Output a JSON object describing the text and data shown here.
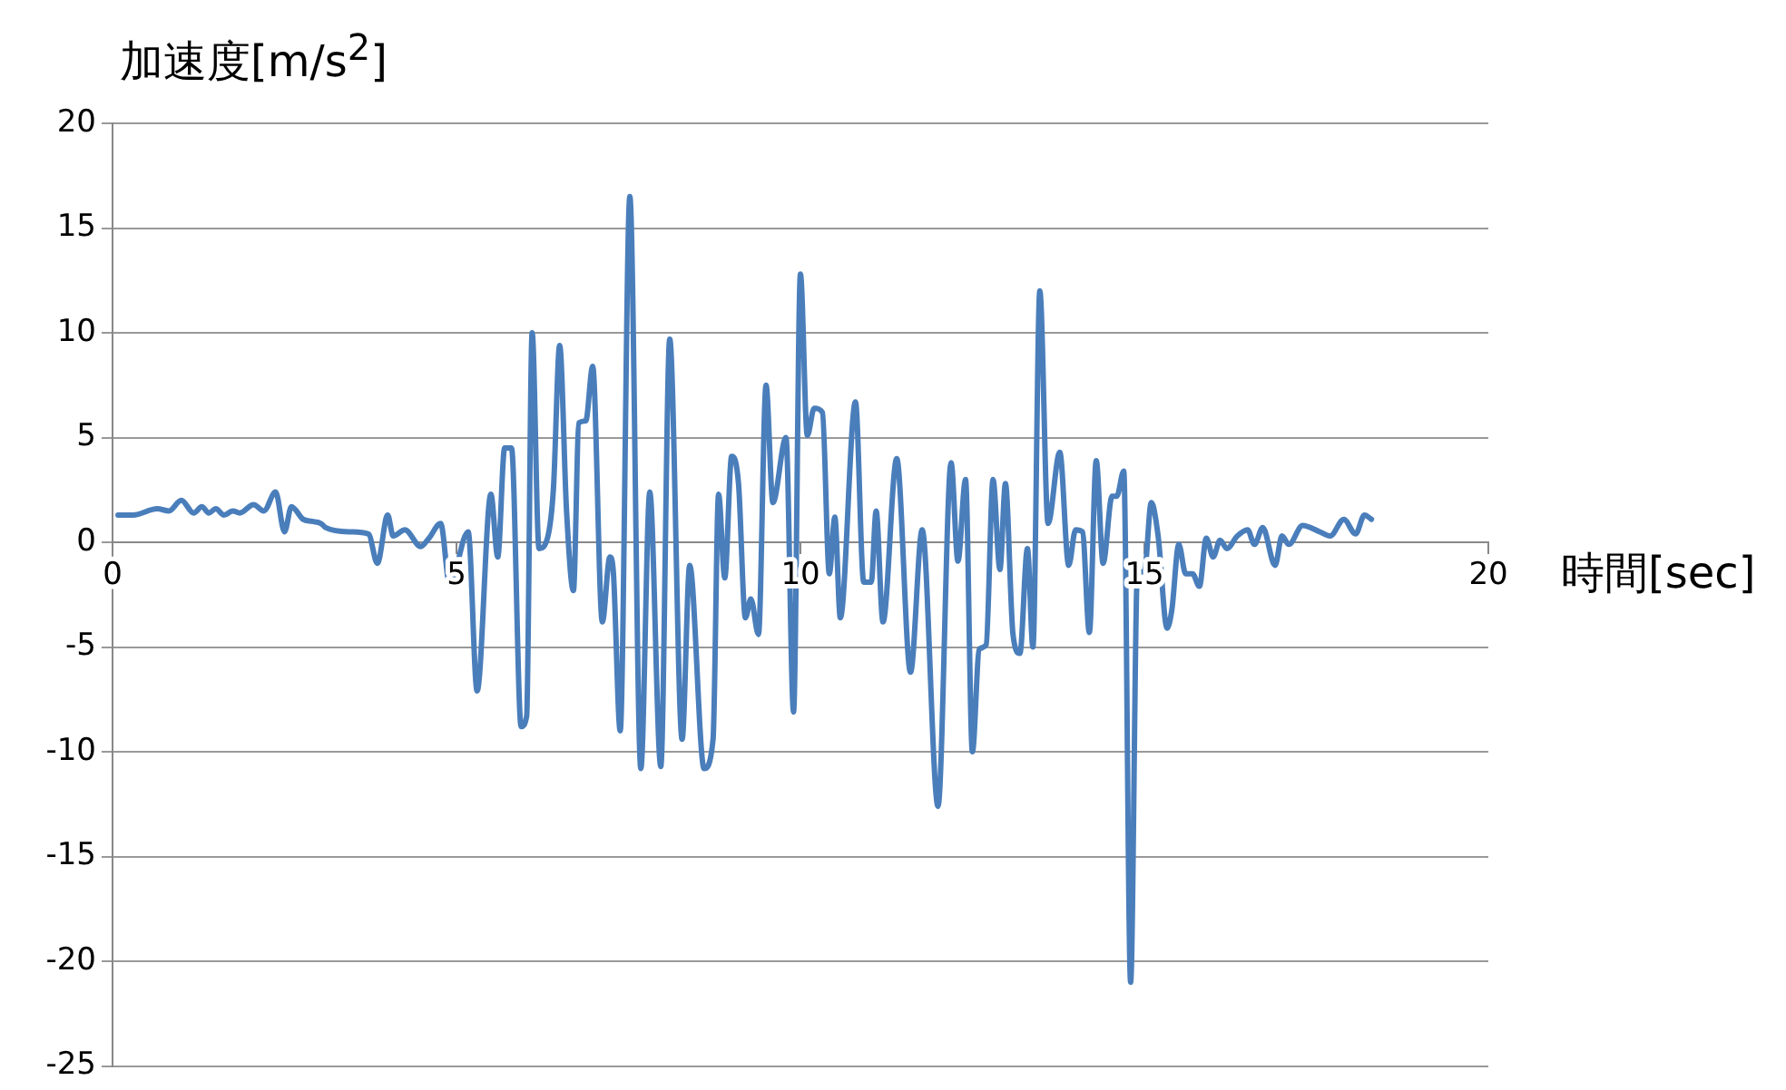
{
  "chart_data": {
    "type": "line",
    "xlabel": "時間[sec]",
    "ylabel": "加速度[m/s$^{2}$]",
    "xlim": [
      0,
      20
    ],
    "xticks": [
      0,
      5,
      10,
      15,
      20
    ],
    "ylim": [
      -25,
      20
    ],
    "yticks": [
      -25,
      -20,
      -15,
      -10,
      -5,
      0,
      5,
      10,
      15,
      20
    ],
    "grid": "y",
    "legend": false,
    "marker": "none",
    "line_style": "solid",
    "series": [
      {
        "color": "#4a7ebb",
        "x": [
          0.08,
          0.3,
          0.65,
          0.82,
          1.0,
          1.18,
          1.3,
          1.4,
          1.5,
          1.62,
          1.75,
          1.85,
          2.05,
          2.2,
          2.37,
          2.5,
          2.6,
          2.77,
          2.9,
          3.03,
          3.1,
          3.46,
          3.72,
          3.85,
          4.0,
          4.08,
          4.25,
          4.48,
          4.6,
          4.77,
          4.9,
          5.17,
          5.3,
          5.5,
          5.6,
          5.7,
          5.8,
          5.94,
          6.02,
          6.1,
          6.2,
          6.33,
          6.41,
          6.5,
          6.6,
          6.7,
          6.78,
          6.88,
          6.98,
          7.12,
          7.23,
          7.28,
          7.38,
          7.52,
          7.68,
          7.81,
          7.97,
          8.1,
          8.28,
          8.39,
          8.6,
          8.73,
          8.81,
          8.9,
          9.0,
          9.1,
          9.2,
          9.28,
          9.39,
          9.5,
          9.6,
          9.79,
          9.9,
          10.0,
          10.1,
          10.2,
          10.32,
          10.42,
          10.5,
          10.58,
          10.8,
          10.92,
          11.03,
          11.1,
          11.2,
          11.4,
          11.6,
          11.77,
          12.0,
          12.19,
          12.29,
          12.4,
          12.5,
          12.6,
          12.7,
          12.8,
          12.9,
          12.98,
          13.09,
          13.19,
          13.3,
          13.38,
          13.48,
          13.6,
          13.77,
          13.9,
          14.0,
          14.1,
          14.2,
          14.3,
          14.4,
          14.53,
          14.6,
          14.7,
          14.8,
          14.9,
          15.0,
          15.1,
          15.2,
          15.33,
          15.4,
          15.5,
          15.6,
          15.7,
          15.8,
          15.9,
          16.0,
          16.1,
          16.2,
          16.35,
          16.5,
          16.6,
          16.72,
          16.9,
          17.0,
          17.1,
          17.3,
          17.55,
          17.7,
          17.9,
          18.07,
          18.2,
          18.3
        ],
        "values": [
          1.3,
          1.3,
          1.6,
          1.5,
          2.0,
          1.4,
          1.7,
          1.4,
          1.6,
          1.3,
          1.5,
          1.4,
          1.8,
          1.5,
          2.4,
          0.5,
          1.7,
          1.1,
          1.0,
          0.9,
          0.7,
          0.5,
          0.4,
          -1.0,
          1.3,
          0.3,
          0.6,
          -0.2,
          0.2,
          0.9,
          -2.0,
          0.5,
          -7.1,
          2.3,
          -0.7,
          4.5,
          4.5,
          -8.8,
          -8.3,
          10.0,
          -0.3,
          0.3,
          2.6,
          9.4,
          1.5,
          -2.3,
          5.7,
          5.8,
          8.4,
          -3.8,
          -0.7,
          -1.4,
          -9.0,
          16.5,
          -10.8,
          2.4,
          -10.7,
          9.7,
          -9.4,
          -1.1,
          -10.8,
          -9.4,
          2.3,
          -1.7,
          4.1,
          2.8,
          -3.6,
          -2.7,
          -4.4,
          7.5,
          1.9,
          5.0,
          -8.1,
          12.8,
          5.1,
          6.4,
          6.2,
          -1.5,
          1.2,
          -3.6,
          6.7,
          -1.9,
          -1.9,
          1.5,
          -3.8,
          4.0,
          -6.2,
          0.6,
          -12.6,
          3.8,
          -0.9,
          3.0,
          -10.0,
          -5.1,
          -4.9,
          3.0,
          -1.3,
          2.8,
          -4.4,
          -5.3,
          -0.3,
          -5.0,
          12.0,
          0.9,
          4.3,
          -1.1,
          0.6,
          0.5,
          -4.3,
          3.9,
          -1.0,
          2.2,
          2.2,
          3.4,
          -21.0,
          -1.4,
          -1.4,
          1.9,
          0.3,
          -4.1,
          -3.2,
          -0.1,
          -1.5,
          -1.5,
          -2.1,
          0.2,
          -0.7,
          0.1,
          -0.3,
          0.3,
          0.6,
          -0.1,
          0.7,
          -1.1,
          0.3,
          -0.1,
          0.8,
          0.5,
          0.3,
          1.1,
          0.4,
          1.3,
          1.1
        ]
      }
    ]
  }
}
